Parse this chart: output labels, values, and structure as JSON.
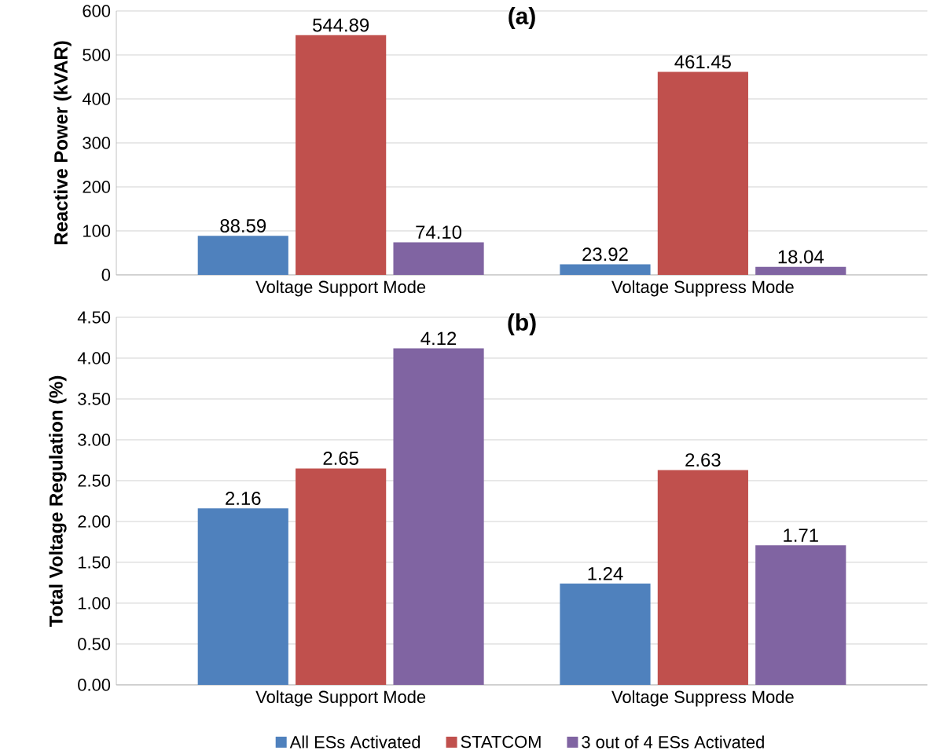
{
  "chart_data": [
    {
      "type": "bar",
      "title": "(a)",
      "ylabel": "Reactive Power (kVAR)",
      "categories": [
        "Voltage Support Mode",
        "Voltage Suppress Mode"
      ],
      "ylim": [
        0,
        600
      ],
      "yticks": [
        0,
        100,
        200,
        300,
        400,
        500,
        600
      ],
      "grid": "y",
      "series": [
        {
          "color": "#4f81bd",
          "values": [
            88.59,
            23.92
          ],
          "value_labels": [
            "88.59",
            "23.92"
          ]
        },
        {
          "color": "#c0504d",
          "values": [
            544.89,
            461.45
          ],
          "value_labels": [
            "544.89",
            "461.45"
          ]
        },
        {
          "color": "#8064a2",
          "values": [
            74.1,
            18.04
          ],
          "value_labels": [
            "74.10",
            "18.04"
          ]
        }
      ]
    },
    {
      "type": "bar",
      "title": "(b)",
      "ylabel": "Total Voltage Regulation (%)",
      "categories": [
        "Voltage Support Mode",
        "Voltage Suppress Mode"
      ],
      "ylim": [
        0,
        4.5
      ],
      "yticks": [
        {
          "value": 0,
          "label": "0.00"
        },
        {
          "value": 0.5,
          "label": "0.50"
        },
        {
          "value": 1,
          "label": "1.00"
        },
        {
          "value": 1.5,
          "label": "1.50"
        },
        {
          "value": 2,
          "label": "2.00"
        },
        {
          "value": 2.5,
          "label": "2.50"
        },
        {
          "value": 3,
          "label": "3.00"
        },
        {
          "value": 3.5,
          "label": "3.50"
        },
        {
          "value": 4,
          "label": "4.00"
        },
        {
          "value": 4.5,
          "label": "4.50"
        }
      ],
      "grid": "y",
      "legend": "bottom",
      "series": [
        {
          "name": "All ESs Activated",
          "color": "#4f81bd",
          "values": [
            2.16,
            1.24
          ],
          "value_labels": [
            "2.16",
            "1.24"
          ]
        },
        {
          "name": "STATCOM",
          "color": "#c0504d",
          "values": [
            2.65,
            2.63
          ],
          "value_labels": [
            "2.65",
            "2.63"
          ]
        },
        {
          "name": "3 out of 4 ESs Activated",
          "color": "#8064a2",
          "values": [
            4.12,
            1.71
          ],
          "value_labels": [
            "4.12",
            "1.71"
          ]
        }
      ]
    }
  ]
}
